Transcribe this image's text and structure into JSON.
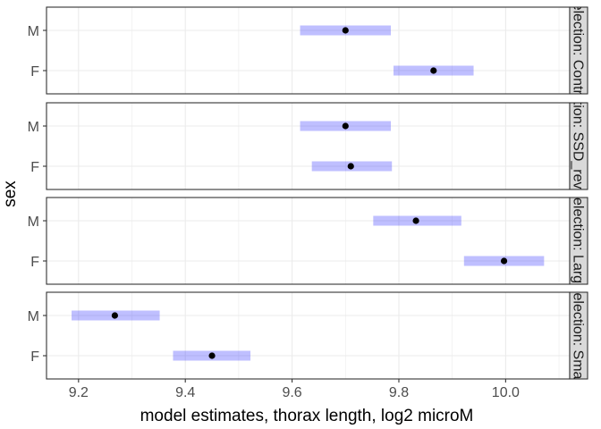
{
  "chart_data": {
    "type": "scatter",
    "subtype": "faceted point estimates with interval bars",
    "xlabel": "model estimates, thorax length, log2 microM",
    "ylabel": "sex",
    "xlim": [
      9.14,
      10.12
    ],
    "x_ticks": [
      "9.2",
      "9.4",
      "9.6",
      "9.8",
      "10.0"
    ],
    "x_tick_values": [
      9.2,
      9.4,
      9.6,
      9.8,
      10.0
    ],
    "categories": [
      "M",
      "F"
    ],
    "grid": true,
    "facets": [
      {
        "strip": "selection: Control",
        "points": [
          {
            "sex": "M",
            "estimate": 9.7,
            "lower": 9.615,
            "upper": 9.785
          },
          {
            "sex": "F",
            "estimate": 9.865,
            "lower": 9.79,
            "upper": 9.94
          }
        ]
      },
      {
        "strip": "selection: SSD_reversed",
        "points": [
          {
            "sex": "M",
            "estimate": 9.7,
            "lower": 9.615,
            "upper": 9.785
          },
          {
            "sex": "F",
            "estimate": 9.71,
            "lower": 9.637,
            "upper": 9.787
          }
        ]
      },
      {
        "strip": "selection: Large",
        "points": [
          {
            "sex": "M",
            "estimate": 9.832,
            "lower": 9.752,
            "upper": 9.917
          },
          {
            "sex": "F",
            "estimate": 9.997,
            "lower": 9.922,
            "upper": 10.072
          }
        ]
      },
      {
        "strip": "selection: Small",
        "points": [
          {
            "sex": "M",
            "estimate": 9.268,
            "lower": 9.187,
            "upper": 9.352
          },
          {
            "sex": "F",
            "estimate": 9.45,
            "lower": 9.377,
            "upper": 9.522
          }
        ]
      }
    ],
    "colors": {
      "interval": "#0000ff",
      "interval_opacity": 0.25,
      "point": "#000000",
      "grid": "#ebebeb",
      "panel_border": "#333333",
      "strip_fill": "#d9d9d9",
      "text": "#4d4d4d",
      "title": "#000000"
    }
  }
}
